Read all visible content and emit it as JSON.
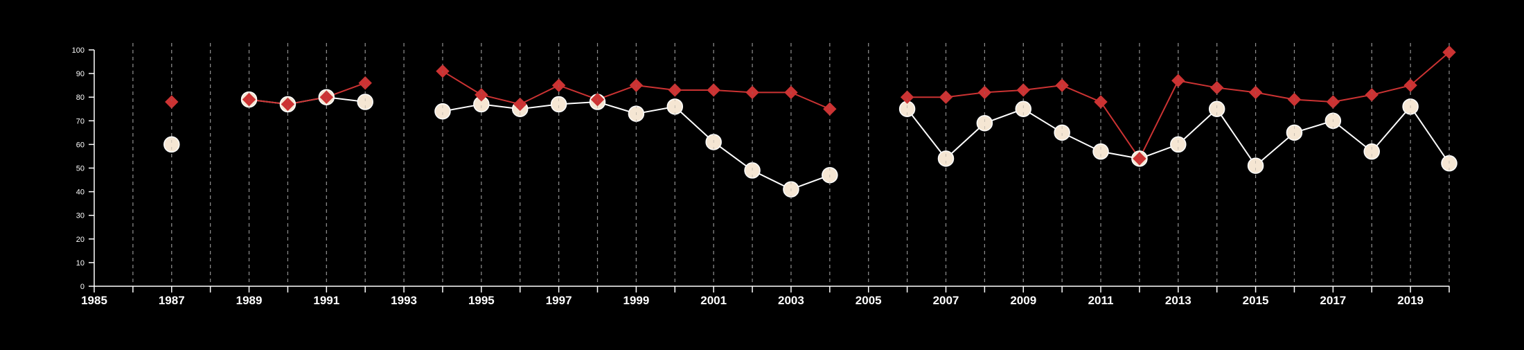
{
  "chart_data": {
    "type": "line",
    "title": "",
    "xlabel": "",
    "ylabel": "",
    "xlim": [
      1985,
      2020
    ],
    "ylim": [
      0,
      100
    ],
    "x_ticks": [
      1985,
      1987,
      1989,
      1991,
      1993,
      1995,
      1997,
      1999,
      2001,
      2003,
      2005,
      2007,
      2009,
      2011,
      2013,
      2015,
      2017,
      2019
    ],
    "y_ticks": [
      0,
      10,
      20,
      30,
      40,
      50,
      60,
      70,
      80,
      90,
      100
    ],
    "grid": "vertical dashed lines at every year",
    "legend": "none",
    "x": [
      1986,
      1987,
      1988,
      1989,
      1990,
      1991,
      1992,
      1993,
      1994,
      1995,
      1996,
      1997,
      1998,
      1999,
      2000,
      2001,
      2002,
      2003,
      2004,
      2005,
      2006,
      2007,
      2008,
      2009,
      2010,
      2011,
      2012,
      2013,
      2014,
      2015,
      2016,
      2017,
      2018,
      2019,
      2020
    ],
    "series": [
      {
        "marker": "diamond",
        "color": "#cc3333",
        "values": [
          null,
          78,
          null,
          79,
          77,
          80,
          86,
          null,
          91,
          81,
          77,
          85,
          79,
          85,
          83,
          83,
          82,
          82,
          75,
          null,
          80,
          80,
          82,
          83,
          85,
          78,
          54,
          87,
          84,
          82,
          79,
          78,
          81,
          85,
          99
        ]
      },
      {
        "marker": "circle",
        "color": "#f5e6d3",
        "values": [
          null,
          60,
          null,
          79,
          77,
          80,
          78,
          null,
          74,
          77,
          75,
          77,
          78,
          73,
          76,
          61,
          49,
          41,
          47,
          null,
          75,
          54,
          69,
          75,
          65,
          57,
          54,
          60,
          75,
          51,
          65,
          70,
          57,
          76,
          52
        ]
      }
    ]
  }
}
